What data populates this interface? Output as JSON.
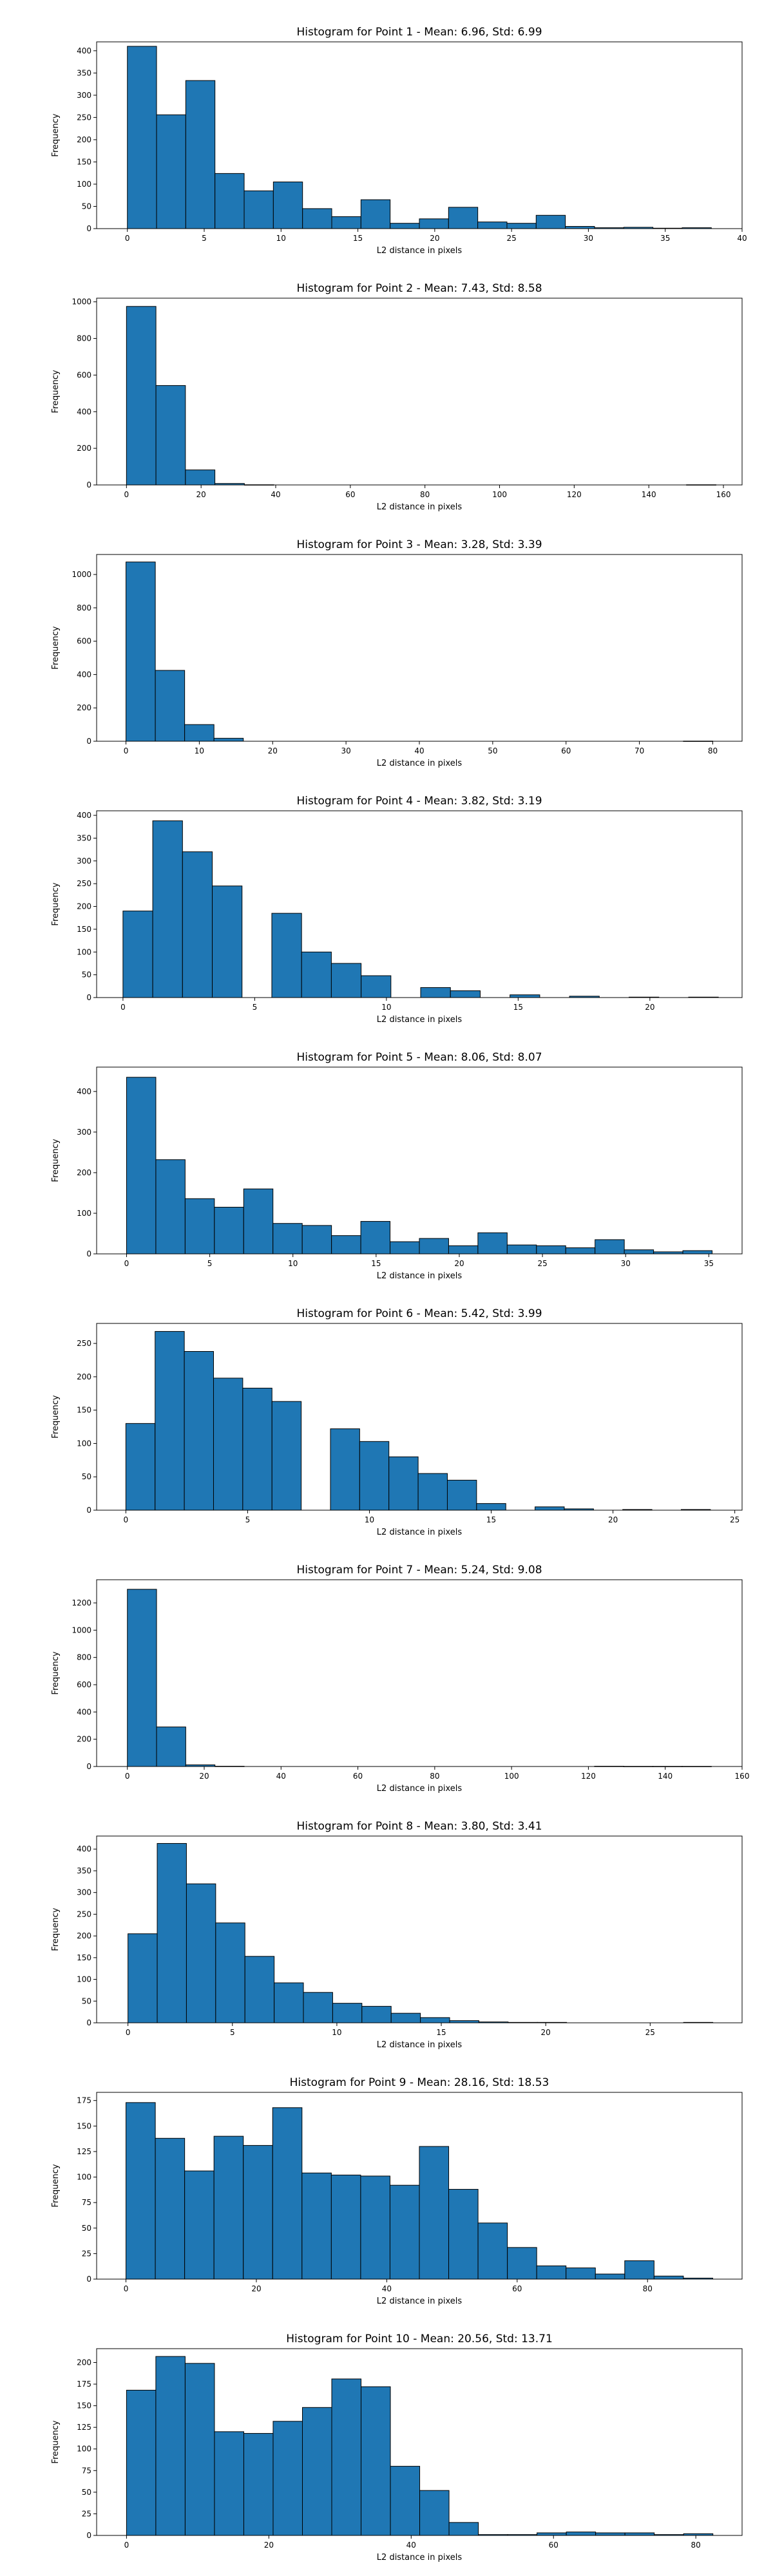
{
  "style": {
    "bar_color": "#1f77b4",
    "edge_color": "#000000",
    "background": "#ffffff"
  },
  "chart_data": [
    {
      "type": "bar",
      "title": "Histogram for Point 1 - Mean: 6.96, Std: 6.99",
      "xlabel": "L2 distance in pixels",
      "ylabel": "Frequency",
      "xlim": [
        -2.0,
        40.0
      ],
      "ylim": [
        0,
        420
      ],
      "xticks": [
        0,
        5,
        10,
        15,
        20,
        25,
        30,
        35,
        40
      ],
      "yticks": [
        0,
        50,
        100,
        150,
        200,
        250,
        300,
        350,
        400
      ],
      "bin_edges": [
        0.0,
        1.9,
        3.8,
        5.7,
        7.6,
        9.5,
        11.4,
        13.3,
        15.2,
        17.1,
        19.0,
        20.9,
        22.8,
        24.7,
        26.6,
        28.5,
        30.4,
        32.3,
        34.2,
        36.1,
        38.0
      ],
      "values": [
        410,
        256,
        333,
        124,
        85,
        105,
        45,
        27,
        65,
        12,
        22,
        48,
        15,
        12,
        30,
        5,
        2,
        3,
        1,
        2
      ]
    },
    {
      "type": "bar",
      "title": "Histogram for Point 2 - Mean: 7.43, Std: 8.58",
      "xlabel": "L2 distance in pixels",
      "ylabel": "Frequency",
      "xlim": [
        -8.0,
        165.0
      ],
      "ylim": [
        0,
        1020
      ],
      "xticks": [
        0,
        20,
        40,
        60,
        80,
        100,
        120,
        140,
        160
      ],
      "yticks": [
        0,
        200,
        400,
        600,
        800,
        1000
      ],
      "bin_edges": [
        0.0,
        7.9,
        15.8,
        23.7,
        31.6,
        39.5,
        47.4,
        55.3,
        63.2,
        71.1,
        79.0,
        86.9,
        94.8,
        102.7,
        110.6,
        118.5,
        126.4,
        134.3,
        142.2,
        150.1,
        158.0
      ],
      "values": [
        975,
        543,
        82,
        8,
        1,
        0,
        0,
        0,
        0,
        0,
        0,
        0,
        0,
        0,
        0,
        0,
        0,
        0,
        0,
        1
      ]
    },
    {
      "type": "bar",
      "title": "Histogram for Point 3 - Mean: 3.28, Std: 3.39",
      "xlabel": "L2 distance in pixels",
      "ylabel": "Frequency",
      "xlim": [
        -4.0,
        84.0
      ],
      "ylim": [
        0,
        1120
      ],
      "xticks": [
        0,
        10,
        20,
        30,
        40,
        50,
        60,
        70,
        80
      ],
      "yticks": [
        0,
        200,
        400,
        600,
        800,
        1000
      ],
      "bin_edges": [
        0.0,
        4.0,
        8.0,
        12.0,
        16.0,
        20.0,
        24.0,
        28.0,
        32.0,
        36.0,
        40.0,
        44.0,
        48.0,
        52.0,
        56.0,
        60.0,
        64.0,
        68.0,
        72.0,
        76.0,
        80.0
      ],
      "values": [
        1075,
        425,
        100,
        18,
        0,
        0,
        0,
        0,
        0,
        0,
        0,
        0,
        0,
        0,
        0,
        0,
        0,
        0,
        0,
        1
      ]
    },
    {
      "type": "bar",
      "title": "Histogram for Point 4 - Mean: 3.82, Std: 3.19",
      "xlabel": "L2 distance in pixels",
      "ylabel": "Frequency",
      "xlim": [
        -1.0,
        23.5
      ],
      "ylim": [
        0,
        410
      ],
      "xticks": [
        0,
        5,
        10,
        15,
        20
      ],
      "yticks": [
        0,
        50,
        100,
        150,
        200,
        250,
        300,
        350,
        400
      ],
      "bin_edges": [
        0.0,
        1.13,
        2.26,
        3.39,
        4.52,
        5.65,
        6.78,
        7.91,
        9.04,
        10.17,
        11.3,
        12.43,
        13.56,
        14.69,
        15.82,
        16.95,
        18.08,
        19.21,
        20.34,
        21.47,
        22.6
      ],
      "values": [
        190,
        388,
        320,
        245,
        0,
        185,
        100,
        75,
        48,
        0,
        22,
        15,
        0,
        6,
        0,
        3,
        0,
        1,
        0,
        1
      ]
    },
    {
      "type": "bar",
      "title": "Histogram for Point 5 - Mean: 8.06, Std: 8.07",
      "xlabel": "L2 distance in pixels",
      "ylabel": "Frequency",
      "xlim": [
        -1.8,
        37.0
      ],
      "ylim": [
        0,
        460
      ],
      "xticks": [
        0,
        5,
        10,
        15,
        20,
        25,
        30,
        35
      ],
      "yticks": [
        0,
        100,
        200,
        300,
        400
      ],
      "bin_edges": [
        0.0,
        1.76,
        3.52,
        5.28,
        7.04,
        8.8,
        10.56,
        12.32,
        14.08,
        15.84,
        17.6,
        19.36,
        21.12,
        22.88,
        24.64,
        26.4,
        28.16,
        29.92,
        31.68,
        33.44,
        35.2
      ],
      "values": [
        435,
        232,
        136,
        115,
        160,
        75,
        70,
        45,
        80,
        30,
        38,
        20,
        52,
        22,
        20,
        15,
        35,
        10,
        5,
        8
      ]
    },
    {
      "type": "bar",
      "title": "Histogram for Point 6 - Mean: 5.42, Std: 3.99",
      "xlabel": "L2 distance in pixels",
      "ylabel": "Frequency",
      "xlim": [
        -1.2,
        25.3
      ],
      "ylim": [
        0,
        280
      ],
      "xticks": [
        0,
        5,
        10,
        15,
        20,
        25
      ],
      "yticks": [
        0,
        50,
        100,
        150,
        200,
        250
      ],
      "bin_edges": [
        0.0,
        1.2,
        2.4,
        3.6,
        4.8,
        6.0,
        7.2,
        8.4,
        9.6,
        10.8,
        12.0,
        13.2,
        14.4,
        15.6,
        16.8,
        18.0,
        19.2,
        20.4,
        21.6,
        22.8,
        24.0
      ],
      "values": [
        130,
        268,
        238,
        198,
        183,
        163,
        0,
        122,
        103,
        80,
        55,
        45,
        10,
        0,
        5,
        2,
        0,
        1,
        0,
        1
      ]
    },
    {
      "type": "bar",
      "title": "Histogram for Point 7 - Mean: 5.24, Std: 9.08",
      "xlabel": "L2 distance in pixels",
      "ylabel": "Frequency",
      "xlim": [
        -8.0,
        160.0
      ],
      "ylim": [
        0,
        1370
      ],
      "xticks": [
        0,
        20,
        40,
        60,
        80,
        100,
        120,
        140,
        160
      ],
      "yticks": [
        0,
        200,
        400,
        600,
        800,
        1000,
        1200
      ],
      "bin_edges": [
        0.0,
        7.6,
        15.2,
        22.8,
        30.4,
        38.0,
        45.6,
        53.2,
        60.8,
        68.4,
        76.0,
        83.6,
        91.2,
        98.8,
        106.4,
        114.0,
        121.6,
        129.2,
        136.8,
        144.4,
        152.0
      ],
      "values": [
        1300,
        290,
        12,
        2,
        0,
        0,
        0,
        0,
        0,
        0,
        0,
        0,
        0,
        0,
        0,
        0,
        2,
        1,
        1,
        1
      ]
    },
    {
      "type": "bar",
      "title": "Histogram for Point 8 - Mean: 3.80, Std: 3.41",
      "xlabel": "L2 distance in pixels",
      "ylabel": "Frequency",
      "xlim": [
        -1.5,
        29.4
      ],
      "ylim": [
        0,
        430
      ],
      "xticks": [
        0,
        5,
        10,
        15,
        20,
        25
      ],
      "yticks": [
        0,
        50,
        100,
        150,
        200,
        250,
        300,
        350,
        400
      ],
      "bin_edges": [
        0.0,
        1.4,
        2.8,
        4.2,
        5.6,
        7.0,
        8.4,
        9.8,
        11.2,
        12.6,
        14.0,
        15.4,
        16.8,
        18.2,
        19.6,
        21.0,
        22.4,
        23.8,
        25.2,
        26.6,
        28.0
      ],
      "values": [
        205,
        413,
        320,
        230,
        153,
        92,
        70,
        45,
        38,
        22,
        12,
        5,
        2,
        1,
        1,
        0,
        0,
        0,
        0,
        1
      ]
    },
    {
      "type": "bar",
      "title": "Histogram for Point 9 - Mean: 28.16, Std: 18.53",
      "xlabel": "L2 distance in pixels",
      "ylabel": "Frequency",
      "xlim": [
        -4.5,
        94.5
      ],
      "ylim": [
        0,
        183
      ],
      "xticks": [
        0,
        20,
        40,
        60,
        80
      ],
      "yticks": [
        0,
        25,
        50,
        75,
        100,
        125,
        150,
        175
      ],
      "bin_edges": [
        0.0,
        4.5,
        9.0,
        13.5,
        18.0,
        22.5,
        27.0,
        31.5,
        36.0,
        40.5,
        45.0,
        49.5,
        54.0,
        58.5,
        63.0,
        67.5,
        72.0,
        76.5,
        81.0,
        85.5,
        90.0
      ],
      "values": [
        173,
        138,
        106,
        140,
        131,
        168,
        104,
        102,
        101,
        92,
        130,
        88,
        55,
        31,
        13,
        11,
        5,
        18,
        3,
        1
      ]
    },
    {
      "type": "bar",
      "title": "Histogram for Point 10 - Mean: 20.56, Std: 13.71",
      "xlabel": "L2 distance in pixels",
      "ylabel": "Frequency",
      "xlim": [
        -4.2,
        86.5
      ],
      "ylim": [
        0,
        216
      ],
      "xticks": [
        0,
        20,
        40,
        60,
        80
      ],
      "yticks": [
        0,
        25,
        50,
        75,
        100,
        125,
        150,
        175,
        200
      ],
      "bin_edges": [
        0.0,
        4.12,
        8.24,
        12.36,
        16.48,
        20.6,
        24.72,
        28.84,
        32.96,
        37.08,
        41.2,
        45.32,
        49.44,
        53.56,
        57.68,
        61.8,
        65.92,
        70.04,
        74.16,
        78.28,
        82.4
      ],
      "values": [
        168,
        207,
        199,
        120,
        118,
        132,
        148,
        181,
        172,
        80,
        52,
        15,
        1,
        1,
        3,
        4,
        3,
        3,
        1,
        2
      ]
    }
  ]
}
